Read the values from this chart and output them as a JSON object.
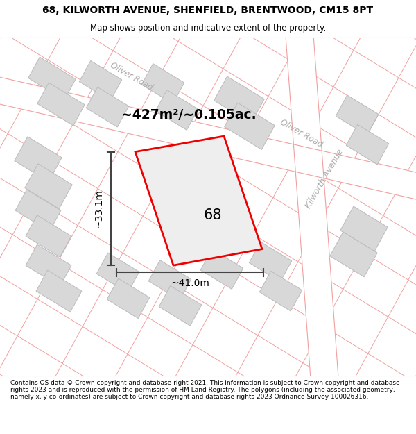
{
  "title_line1": "68, KILWORTH AVENUE, SHENFIELD, BRENTWOOD, CM15 8PT",
  "title_line2": "Map shows position and indicative extent of the property.",
  "footer_text": "Contains OS data © Crown copyright and database right 2021. This information is subject to Crown copyright and database rights 2023 and is reproduced with the permission of HM Land Registry. The polygons (including the associated geometry, namely x, y co-ordinates) are subject to Crown copyright and database rights 2023 Ordnance Survey 100026316.",
  "area_label": "~427m²/~0.105ac.",
  "width_label": "~41.0m",
  "height_label": "~33.1m",
  "plot_number": "68",
  "map_bg": "#f8f8f8",
  "plot_fill": "#eeeeee",
  "plot_outline": "#ee0000",
  "road_label_color": "#aaaaaa",
  "building_fill": "#d8d8d8",
  "building_outline": "#bbbbbb",
  "road_line_color": "#f0a0a0",
  "road_fill_color": "#ffffff",
  "dimension_color": "#444444",
  "title_fontsize": 10,
  "subtitle_fontsize": 8.5,
  "footer_fontsize": 6.5
}
